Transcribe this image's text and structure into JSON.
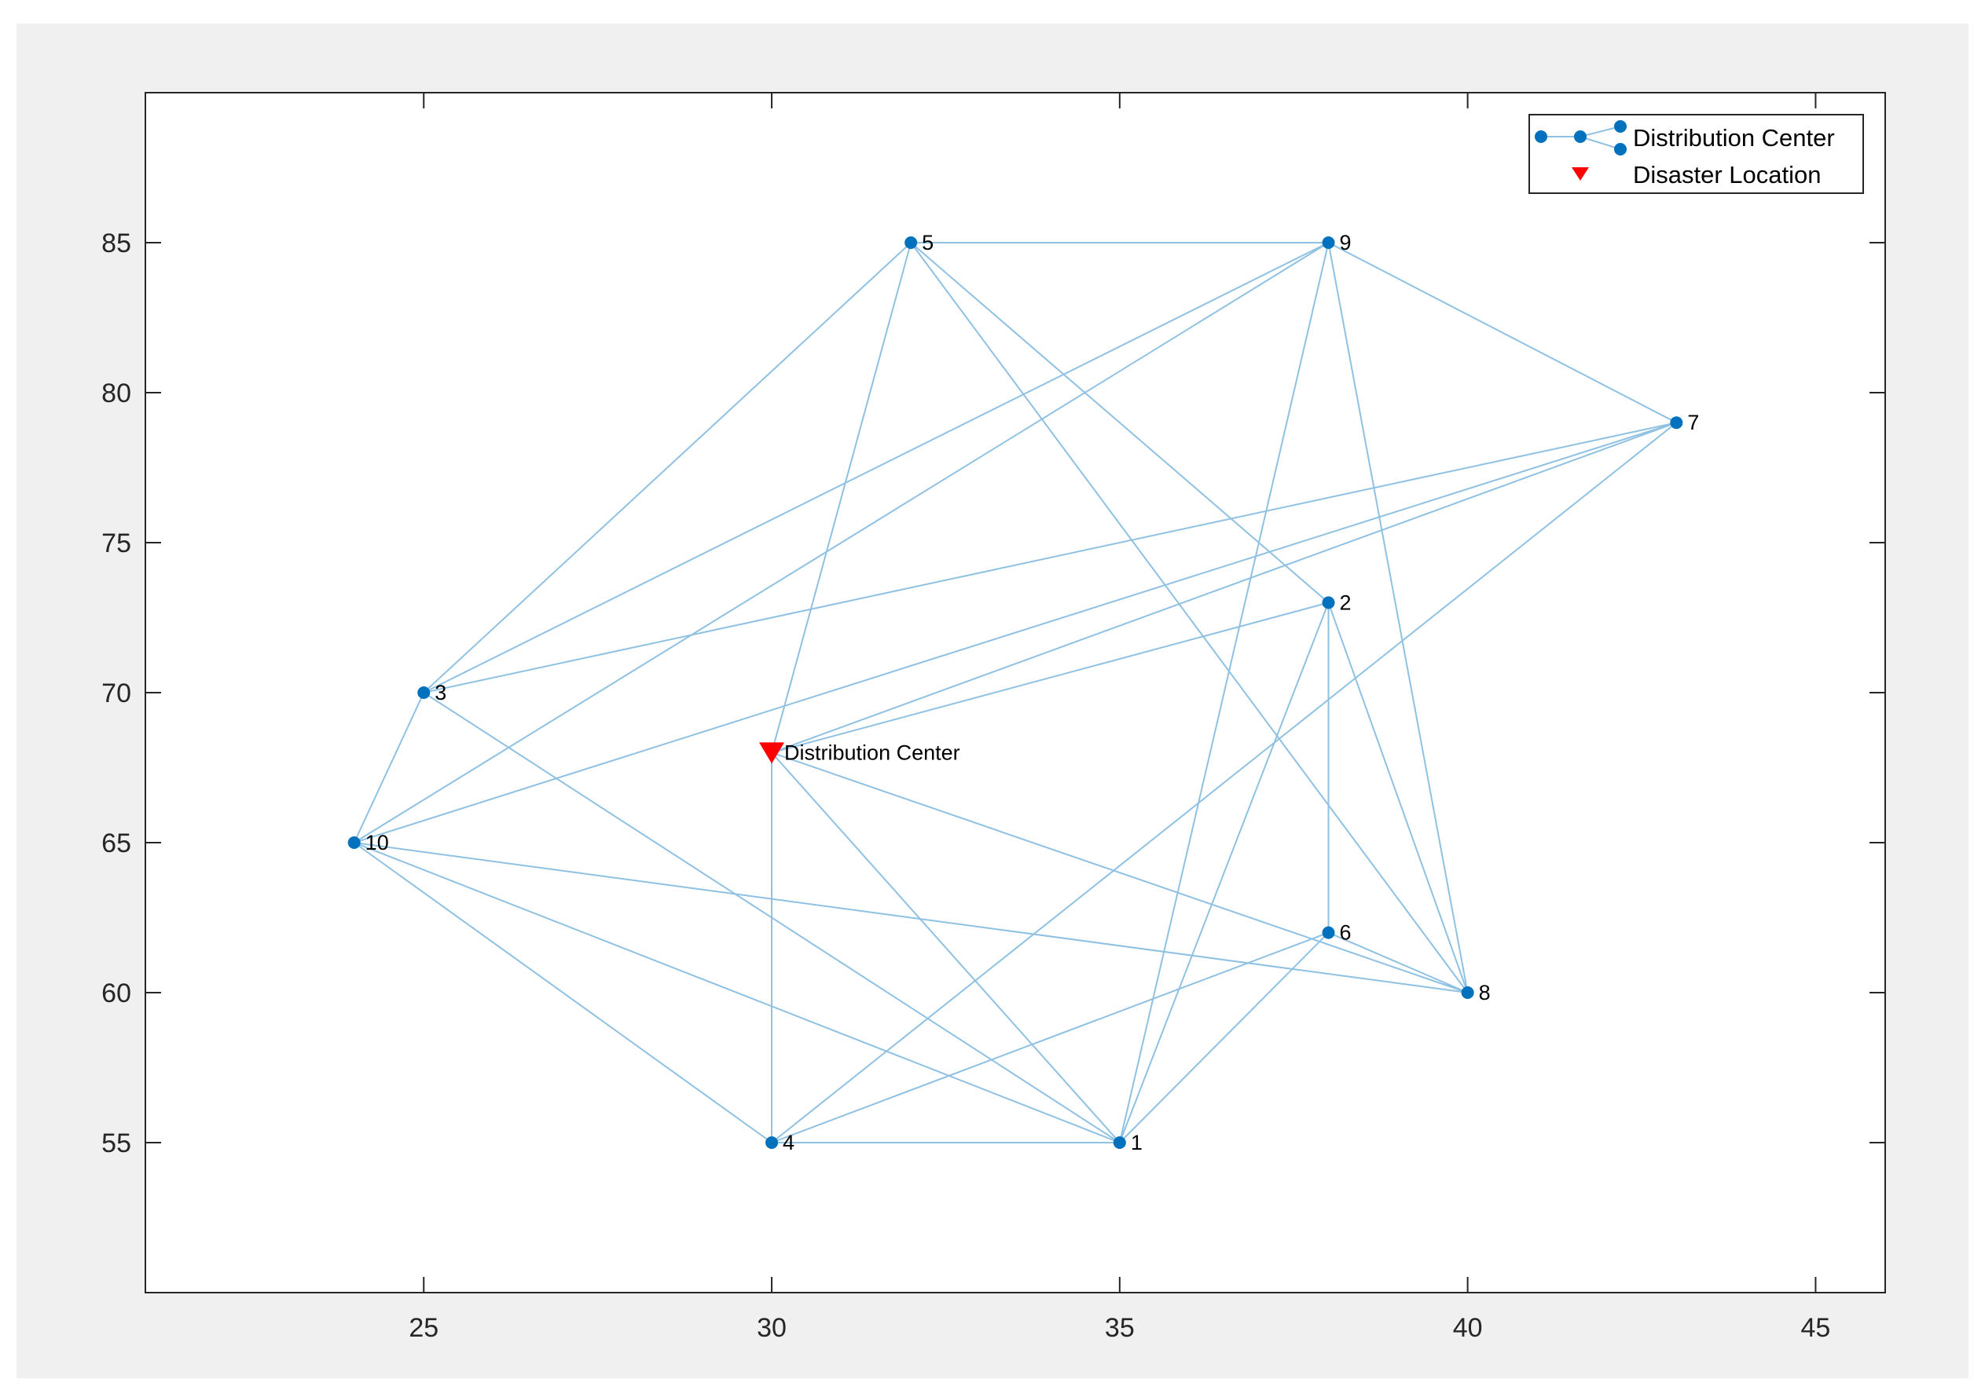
{
  "figure": {
    "background": "#f0f0f0"
  },
  "chart_data": {
    "type": "scatter",
    "title": "",
    "xlabel": "",
    "ylabel": "",
    "xlim": [
      21,
      46
    ],
    "ylim": [
      50,
      90
    ],
    "xticks": [
      25,
      30,
      35,
      40,
      45
    ],
    "yticks": [
      55,
      60,
      65,
      70,
      75,
      80,
      85
    ],
    "xtick_labels": [
      "25",
      "30",
      "35",
      "40",
      "45"
    ],
    "ytick_labels": [
      "55",
      "60",
      "65",
      "70",
      "75",
      "80",
      "85"
    ],
    "grid": false,
    "colors": {
      "node": "#0072bd",
      "edge": "#8fc1e3",
      "disaster": "#ff0000",
      "axes": "#262626"
    },
    "series": [
      {
        "name": "Distribution Center",
        "kind": "graph",
        "nodes": [
          {
            "id": "1",
            "label": "1",
            "x": 35,
            "y": 55
          },
          {
            "id": "2",
            "label": "2",
            "x": 38,
            "y": 73
          },
          {
            "id": "3",
            "label": "3",
            "x": 25,
            "y": 70
          },
          {
            "id": "4",
            "label": "4",
            "x": 30,
            "y": 55
          },
          {
            "id": "5",
            "label": "5",
            "x": 32,
            "y": 85
          },
          {
            "id": "6",
            "label": "6",
            "x": 38,
            "y": 62
          },
          {
            "id": "7",
            "label": "7",
            "x": 43,
            "y": 79
          },
          {
            "id": "8",
            "label": "8",
            "x": 40,
            "y": 60
          },
          {
            "id": "9",
            "label": "9",
            "x": 38,
            "y": 85
          },
          {
            "id": "10",
            "label": "10",
            "x": 24,
            "y": 65
          },
          {
            "id": "DC",
            "label": "Distribution Center",
            "x": 30,
            "y": 68
          }
        ],
        "edges": [
          [
            "5",
            "9"
          ],
          [
            "5",
            "3"
          ],
          [
            "5",
            "DC"
          ],
          [
            "5",
            "2"
          ],
          [
            "5",
            "8"
          ],
          [
            "9",
            "3"
          ],
          [
            "9",
            "10"
          ],
          [
            "9",
            "7"
          ],
          [
            "9",
            "1"
          ],
          [
            "9",
            "8"
          ],
          [
            "7",
            "3"
          ],
          [
            "7",
            "DC"
          ],
          [
            "7",
            "10"
          ],
          [
            "7",
            "4"
          ],
          [
            "2",
            "DC"
          ],
          [
            "2",
            "6"
          ],
          [
            "2",
            "8"
          ],
          [
            "2",
            "1"
          ],
          [
            "3",
            "10"
          ],
          [
            "3",
            "1"
          ],
          [
            "10",
            "1"
          ],
          [
            "10",
            "4"
          ],
          [
            "10",
            "8"
          ],
          [
            "DC",
            "4"
          ],
          [
            "DC",
            "1"
          ],
          [
            "DC",
            "8"
          ],
          [
            "6",
            "8"
          ],
          [
            "6",
            "4"
          ],
          [
            "6",
            "1"
          ],
          [
            "4",
            "1"
          ]
        ]
      },
      {
        "name": "Disaster Location",
        "kind": "marker",
        "marker": "triangle-down",
        "points": [
          {
            "x": 30,
            "y": 68
          }
        ]
      }
    ],
    "legend": {
      "position": "top-right",
      "entries": [
        "Distribution Center",
        "Disaster Location"
      ]
    }
  }
}
